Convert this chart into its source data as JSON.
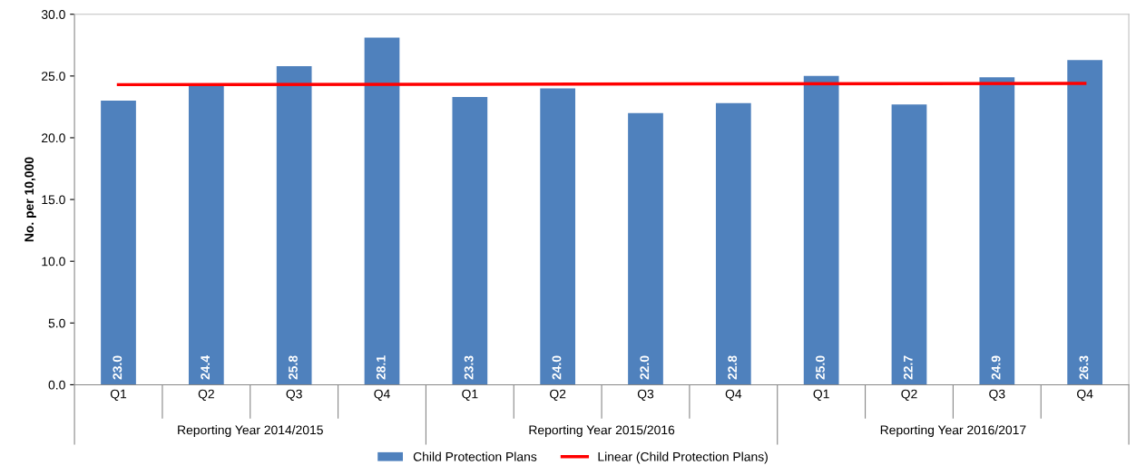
{
  "chart_data": {
    "type": "bar",
    "ylabel": "No. per 10,000",
    "categories": [
      "Q1",
      "Q2",
      "Q3",
      "Q4",
      "Q1",
      "Q2",
      "Q3",
      "Q4",
      "Q1",
      "Q2",
      "Q3",
      "Q4"
    ],
    "annotations": [
      "Reporting Year 2014/2015",
      "Reporting Year 2015/2016",
      "Reporting Year 2016/2017"
    ],
    "series": [
      {
        "name": "Child Protection Plans",
        "color": "#4f81bd",
        "values": [
          23.0,
          24.4,
          25.8,
          28.1,
          23.3,
          24.0,
          22.0,
          22.8,
          25.0,
          22.7,
          24.9,
          26.3
        ],
        "value_labels": [
          "23.0",
          "24.4",
          "25.8",
          "28.1",
          "23.3",
          "24.0",
          "22.0",
          "22.8",
          "25.0",
          "22.7",
          "24.9",
          "26.3"
        ]
      },
      {
        "name": "Linear (Child Protection Plans)",
        "type": "line",
        "color": "#ff0000",
        "values": [
          24.3,
          null,
          null,
          null,
          null,
          null,
          null,
          null,
          null,
          null,
          null,
          24.4
        ]
      }
    ],
    "ylim": [
      0,
      30
    ],
    "yticks": [
      {
        "value": 0,
        "label": "0.0"
      },
      {
        "value": 5,
        "label": "5.0"
      },
      {
        "value": 10,
        "label": "10.0"
      },
      {
        "value": 15,
        "label": "15.0"
      },
      {
        "value": 20,
        "label": "20.0"
      },
      {
        "value": 25,
        "label": "25.0"
      },
      {
        "value": 30,
        "label": "30.0"
      }
    ],
    "legend": "bottom",
    "grid": false
  }
}
